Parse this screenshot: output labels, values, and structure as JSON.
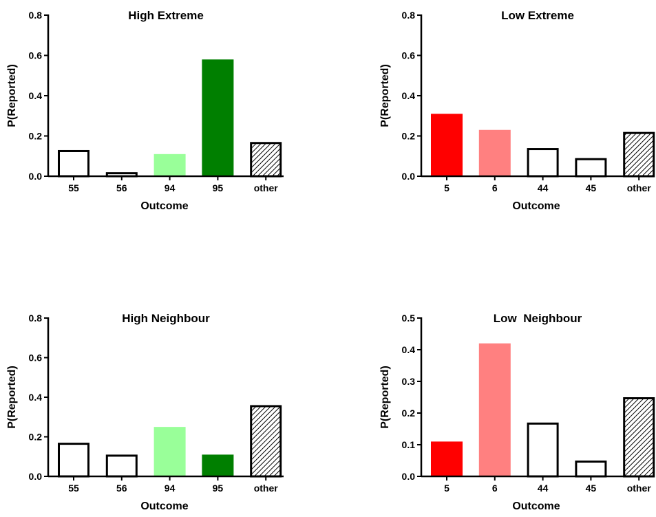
{
  "chart_data": [
    {
      "type": "bar",
      "title": "High Extreme",
      "xlabel": "Outcome",
      "ylabel": "P(Reported)",
      "categories": [
        "55",
        "56",
        "94",
        "95",
        "other"
      ],
      "values": [
        0.13,
        0.02,
        0.11,
        0.58,
        0.17
      ],
      "colors": [
        "#ffffff",
        "#ffffff",
        "#99ff99",
        "#007f00",
        "hatch"
      ],
      "ylim": [
        0,
        0.8
      ],
      "yticks": [
        {
          "value": 0,
          "label": "0.0"
        },
        0.2,
        0.4,
        0.6,
        0.8
      ]
    },
    {
      "type": "bar",
      "title": "Low Extreme",
      "xlabel": "Outcome",
      "ylabel": "P(Reported)",
      "categories": [
        "5",
        "6",
        "44",
        "45",
        "other"
      ],
      "values": [
        0.31,
        0.23,
        0.14,
        0.09,
        0.22
      ],
      "colors": [
        "#ff0000",
        "#ff8080",
        "#ffffff",
        "#ffffff",
        "hatch"
      ],
      "ylim": [
        0,
        0.8
      ],
      "yticks": [
        {
          "value": 0,
          "label": "0.0"
        },
        0.2,
        0.4,
        0.6,
        0.8
      ]
    },
    {
      "type": "bar",
      "title": "High Neighbour",
      "xlabel": "Outcome",
      "ylabel": "P(Reported)",
      "categories": [
        "55",
        "56",
        "94",
        "95",
        "other"
      ],
      "values": [
        0.17,
        0.11,
        0.25,
        0.11,
        0.36
      ],
      "colors": [
        "#ffffff",
        "#ffffff",
        "#99ff99",
        "#007f00",
        "hatch"
      ],
      "ylim": [
        0,
        0.8
      ],
      "yticks": [
        {
          "value": 0,
          "label": "0.0"
        },
        0.2,
        0.4,
        0.6,
        0.8
      ]
    },
    {
      "type": "bar",
      "title": "Low  Neighbour",
      "xlabel": "Outcome",
      "ylabel": "P(Reported)",
      "categories": [
        "5",
        "6",
        "44",
        "45",
        "other"
      ],
      "values": [
        0.11,
        0.42,
        0.17,
        0.05,
        0.25
      ],
      "colors": [
        "#ff0000",
        "#ff8080",
        "#ffffff",
        "#ffffff",
        "hatch"
      ],
      "ylim": [
        0,
        0.5
      ],
      "yticks": [
        {
          "value": 0,
          "label": "0.0"
        },
        0.1,
        0.2,
        0.3,
        0.4,
        0.5
      ]
    }
  ]
}
